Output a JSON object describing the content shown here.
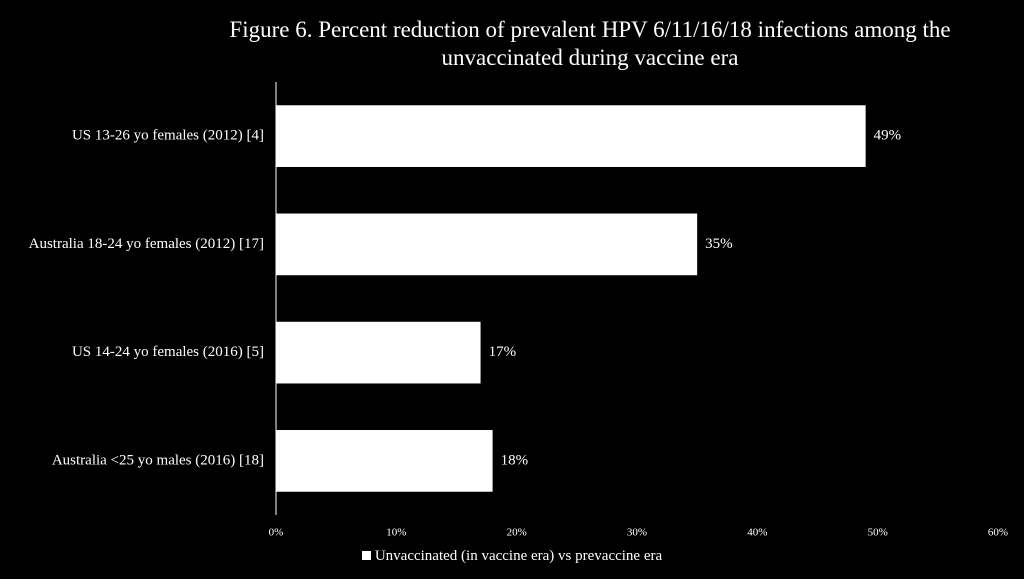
{
  "chart_data": {
    "type": "bar",
    "orientation": "horizontal",
    "title_lines": [
      "Figure 6. Percent reduction of prevalent HPV 6/11/16/18 infections among the",
      "unvaccinated during vaccine era"
    ],
    "categories": [
      "US 13-26 yo females (2012) [4]",
      "Australia 18-24 yo females (2012) [17]",
      "US 14-24 yo females (2016) [5]",
      "Australia <25 yo males (2016) [18]"
    ],
    "series": [
      {
        "name": "Unvaccinated (in vaccine era) vs prevaccine era",
        "values": [
          49,
          35,
          17,
          18
        ],
        "labels": [
          "49%",
          "35%",
          "17%",
          "18%"
        ]
      }
    ],
    "x_ticks": [
      "0%",
      "10%",
      "20%",
      "30%",
      "40%",
      "50%",
      "60%"
    ],
    "xlim": [
      0,
      60
    ],
    "grid": false,
    "legend_position": "bottom",
    "colors": {
      "background": "#000000",
      "bar": "#ffffff",
      "text": "#ffffff",
      "axis": "#ffffff"
    }
  }
}
